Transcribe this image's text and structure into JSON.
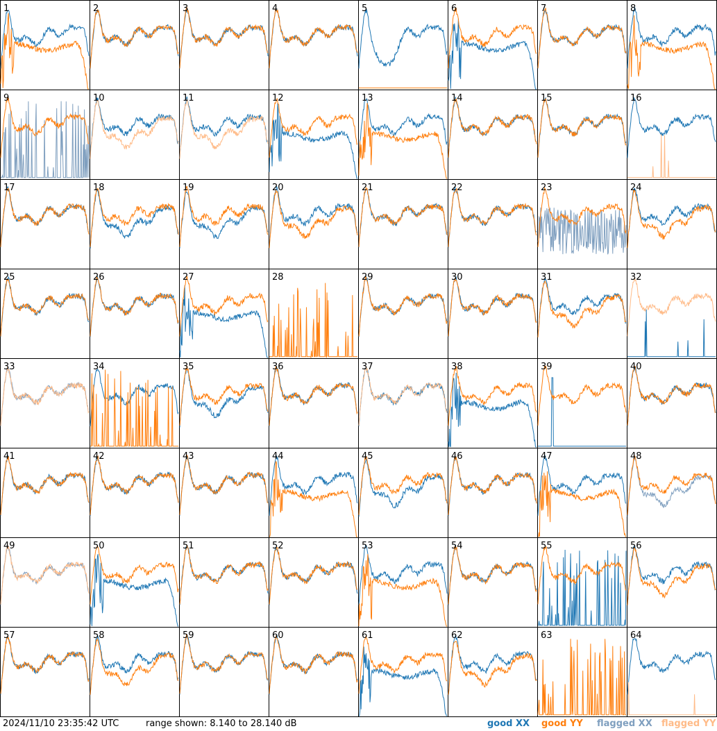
{
  "footer": {
    "timestamp": "2024/11/10 23:35:42 UTC",
    "range": "range shown: 8.140 to 28.140 dB"
  },
  "chart_data": {
    "type": "line",
    "title": "",
    "range_db": [
      8.14,
      28.14
    ],
    "grid": "8x8",
    "x_axis": "frequency channel (unlabeled)",
    "legend": [
      {
        "key": "good_xx",
        "label": "good XX",
        "color": "#1f77b4"
      },
      {
        "key": "good_yy",
        "label": "good YY",
        "color": "#ff7f0e"
      },
      {
        "key": "flagged_xx",
        "label": "flagged XX",
        "color": "#7f9fbf"
      },
      {
        "key": "flagged_yy",
        "label": "flagged YY",
        "color": "#ffbb88"
      }
    ],
    "panels": [
      {
        "id": "1",
        "xx": "good",
        "yy": "good",
        "xx_shape": "normal",
        "yy_shape": "rolloff"
      },
      {
        "id": "2",
        "xx": "good",
        "yy": "good",
        "xx_shape": "normal",
        "yy_shape": "normal"
      },
      {
        "id": "3",
        "xx": "good",
        "yy": "good",
        "xx_shape": "normal",
        "yy_shape": "normal"
      },
      {
        "id": "4",
        "xx": "good",
        "yy": "good",
        "xx_shape": "normal",
        "yy_shape": "normal"
      },
      {
        "id": "5",
        "xx": "good",
        "yy": "good",
        "xx_shape": "dip",
        "yy_shape": "floor"
      },
      {
        "id": "6",
        "xx": "good",
        "yy": "good",
        "xx_shape": "rolloff",
        "yy_shape": "normal"
      },
      {
        "id": "7",
        "xx": "good",
        "yy": "good",
        "xx_shape": "normal",
        "yy_shape": "normal"
      },
      {
        "id": "8",
        "xx": "good",
        "yy": "good",
        "xx_shape": "normal",
        "yy_shape": "rolloff"
      },
      {
        "id": "9",
        "xx": "flagged",
        "yy": "good",
        "xx_shape": "spikes",
        "yy_shape": "normal"
      },
      {
        "id": "10",
        "xx": "good",
        "yy": "flagged",
        "xx_shape": "normal",
        "yy_shape": "low"
      },
      {
        "id": "11",
        "xx": "good",
        "yy": "flagged",
        "xx_shape": "normal",
        "yy_shape": "low"
      },
      {
        "id": "12",
        "xx": "good",
        "yy": "good",
        "xx_shape": "rolloff",
        "yy_shape": "normal"
      },
      {
        "id": "13",
        "xx": "good",
        "yy": "good",
        "xx_shape": "normal",
        "yy_shape": "rolloff"
      },
      {
        "id": "14",
        "xx": "good",
        "yy": "good",
        "xx_shape": "normal",
        "yy_shape": "normal"
      },
      {
        "id": "15",
        "xx": "good",
        "yy": "good",
        "xx_shape": "normal",
        "yy_shape": "normal"
      },
      {
        "id": "16",
        "xx": "good",
        "yy": "flagged",
        "xx_shape": "normal",
        "yy_shape": "floor"
      },
      {
        "id": "17",
        "xx": "good",
        "yy": "good",
        "xx_shape": "normal",
        "yy_shape": "normal"
      },
      {
        "id": "18",
        "xx": "good",
        "yy": "good",
        "xx_shape": "low",
        "yy_shape": "normal"
      },
      {
        "id": "19",
        "xx": "good",
        "yy": "good",
        "xx_shape": "low",
        "yy_shape": "normal"
      },
      {
        "id": "20",
        "xx": "good",
        "yy": "good",
        "xx_shape": "normal",
        "yy_shape": "low"
      },
      {
        "id": "21",
        "xx": "good",
        "yy": "good",
        "xx_shape": "normal",
        "yy_shape": "normal"
      },
      {
        "id": "22",
        "xx": "good",
        "yy": "good",
        "xx_shape": "normal",
        "yy_shape": "normal"
      },
      {
        "id": "23",
        "xx": "flagged",
        "yy": "good",
        "xx_shape": "noise",
        "yy_shape": "normal"
      },
      {
        "id": "24",
        "xx": "good",
        "yy": "good",
        "xx_shape": "normal",
        "yy_shape": "low"
      },
      {
        "id": "25",
        "xx": "good",
        "yy": "good",
        "xx_shape": "normal",
        "yy_shape": "normal"
      },
      {
        "id": "26",
        "xx": "good",
        "yy": "good",
        "xx_shape": "normal",
        "yy_shape": "normal"
      },
      {
        "id": "27",
        "xx": "good",
        "yy": "good",
        "xx_shape": "rolloff",
        "yy_shape": "normal"
      },
      {
        "id": "28",
        "xx": "good",
        "yy": "good",
        "xx_shape": "none",
        "yy_shape": "spikes"
      },
      {
        "id": "29",
        "xx": "good",
        "yy": "good",
        "xx_shape": "normal",
        "yy_shape": "normal"
      },
      {
        "id": "30",
        "xx": "good",
        "yy": "good",
        "xx_shape": "normal",
        "yy_shape": "normal"
      },
      {
        "id": "31",
        "xx": "good",
        "yy": "good",
        "xx_shape": "normal",
        "yy_shape": "low"
      },
      {
        "id": "32",
        "xx": "good",
        "yy": "flagged",
        "xx_shape": "floor",
        "yy_shape": "normal"
      },
      {
        "id": "33",
        "xx": "flagged",
        "yy": "flagged",
        "xx_shape": "normal",
        "yy_shape": "normal"
      },
      {
        "id": "34",
        "xx": "good",
        "yy": "good",
        "xx_shape": "normal",
        "yy_shape": "spikes"
      },
      {
        "id": "35",
        "xx": "good",
        "yy": "good",
        "xx_shape": "low",
        "yy_shape": "normal"
      },
      {
        "id": "36",
        "xx": "good",
        "yy": "good",
        "xx_shape": "normal",
        "yy_shape": "normal"
      },
      {
        "id": "37",
        "xx": "good",
        "yy": "flagged",
        "xx_shape": "normal",
        "yy_shape": "normal"
      },
      {
        "id": "38",
        "xx": "good",
        "yy": "good",
        "xx_shape": "rolloff",
        "yy_shape": "normal"
      },
      {
        "id": "39",
        "xx": "good",
        "yy": "good",
        "xx_shape": "spike",
        "yy_shape": "normal"
      },
      {
        "id": "40",
        "xx": "good",
        "yy": "good",
        "xx_shape": "normal",
        "yy_shape": "normal"
      },
      {
        "id": "41",
        "xx": "good",
        "yy": "good",
        "xx_shape": "normal",
        "yy_shape": "normal"
      },
      {
        "id": "42",
        "xx": "good",
        "yy": "good",
        "xx_shape": "normal",
        "yy_shape": "normal"
      },
      {
        "id": "43",
        "xx": "good",
        "yy": "good",
        "xx_shape": "normal",
        "yy_shape": "normal"
      },
      {
        "id": "44",
        "xx": "good",
        "yy": "good",
        "xx_shape": "normal",
        "yy_shape": "rolloff"
      },
      {
        "id": "45",
        "xx": "good",
        "yy": "good",
        "xx_shape": "low",
        "yy_shape": "normal"
      },
      {
        "id": "46",
        "xx": "good",
        "yy": "good",
        "xx_shape": "normal",
        "yy_shape": "normal"
      },
      {
        "id": "47",
        "xx": "good",
        "yy": "good",
        "xx_shape": "normal",
        "yy_shape": "rolloff"
      },
      {
        "id": "48",
        "xx": "flagged",
        "yy": "good",
        "xx_shape": "low",
        "yy_shape": "normal"
      },
      {
        "id": "49",
        "xx": "flagged",
        "yy": "flagged",
        "xx_shape": "normal",
        "yy_shape": "normal"
      },
      {
        "id": "50",
        "xx": "good",
        "yy": "good",
        "xx_shape": "rolloff",
        "yy_shape": "normal"
      },
      {
        "id": "51",
        "xx": "good",
        "yy": "good",
        "xx_shape": "normal",
        "yy_shape": "normal"
      },
      {
        "id": "52",
        "xx": "good",
        "yy": "good",
        "xx_shape": "normal",
        "yy_shape": "normal"
      },
      {
        "id": "53",
        "xx": "good",
        "yy": "good",
        "xx_shape": "normal",
        "yy_shape": "rolloff"
      },
      {
        "id": "54",
        "xx": "good",
        "yy": "good",
        "xx_shape": "normal",
        "yy_shape": "normal"
      },
      {
        "id": "55",
        "xx": "good",
        "yy": "good",
        "xx_shape": "spikes",
        "yy_shape": "normal"
      },
      {
        "id": "56",
        "xx": "good",
        "yy": "good",
        "xx_shape": "normal",
        "yy_shape": "low"
      },
      {
        "id": "57",
        "xx": "good",
        "yy": "good",
        "xx_shape": "normal",
        "yy_shape": "normal"
      },
      {
        "id": "58",
        "xx": "good",
        "yy": "good",
        "xx_shape": "normal",
        "yy_shape": "low"
      },
      {
        "id": "59",
        "xx": "good",
        "yy": "good",
        "xx_shape": "normal",
        "yy_shape": "normal"
      },
      {
        "id": "60",
        "xx": "good",
        "yy": "good",
        "xx_shape": "normal",
        "yy_shape": "normal"
      },
      {
        "id": "61",
        "xx": "good",
        "yy": "good",
        "xx_shape": "rolloff",
        "yy_shape": "normal"
      },
      {
        "id": "62",
        "xx": "good",
        "yy": "good",
        "xx_shape": "normal",
        "yy_shape": "low"
      },
      {
        "id": "63",
        "xx": "good",
        "yy": "good",
        "xx_shape": "none",
        "yy_shape": "spikes"
      },
      {
        "id": "64",
        "xx": "good",
        "yy": "flagged",
        "xx_shape": "normal",
        "yy_shape": "floor"
      }
    ]
  }
}
